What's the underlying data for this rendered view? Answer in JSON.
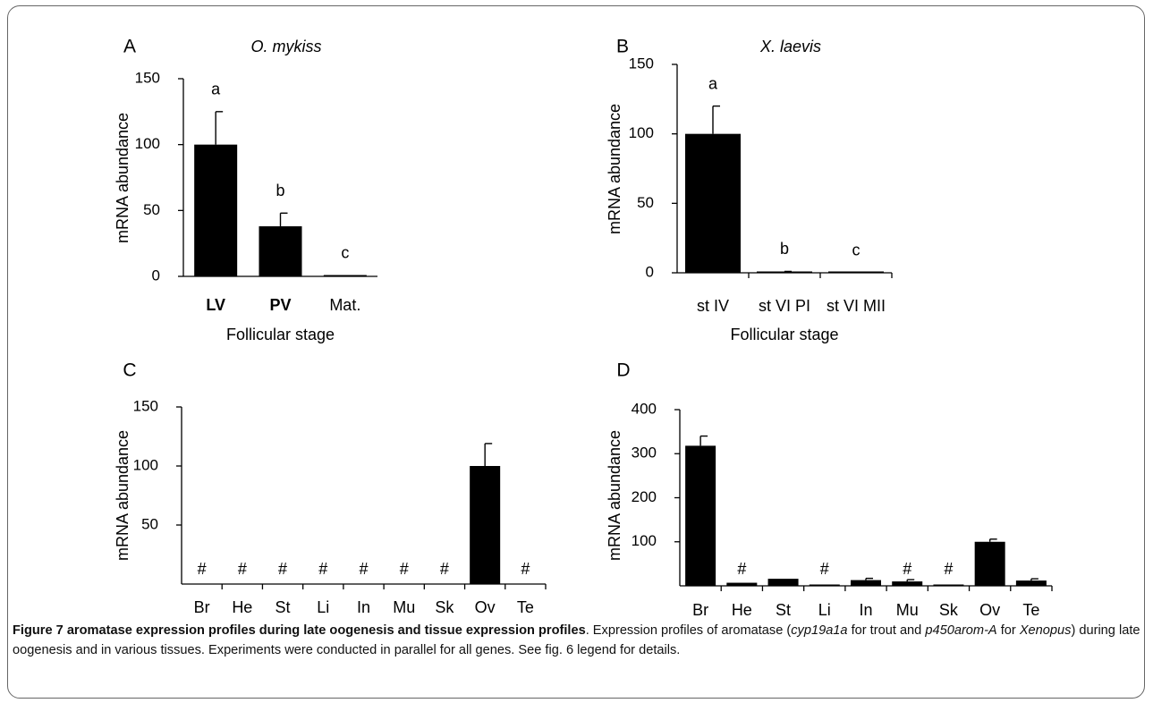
{
  "charts": [
    {
      "panel": "A",
      "title": "O. mykiss",
      "type": "bar",
      "ylabel": "mRNA abundance",
      "xlabel": "Follicular stage",
      "ylim": [
        0,
        150
      ],
      "yticks": [
        "0",
        "50",
        "100",
        "150"
      ],
      "categories": [
        "LV",
        "PV",
        "Mat."
      ],
      "bold_categories": [
        "LV",
        "PV"
      ],
      "values": [
        100,
        38,
        1
      ],
      "errors": [
        25,
        10,
        0
      ],
      "letters": [
        "a",
        "b",
        "c"
      ]
    },
    {
      "panel": "B",
      "title": "X. laevis",
      "type": "bar",
      "ylabel": "mRNA abundance",
      "xlabel": "Follicular stage",
      "ylim": [
        0,
        150
      ],
      "yticks": [
        "0",
        "50",
        "100",
        "150"
      ],
      "categories": [
        "st IV",
        "st VI PI",
        "st VI MII"
      ],
      "values": [
        100,
        0.5,
        0.2
      ],
      "errors": [
        20,
        0.5,
        0
      ],
      "letters": [
        "a",
        "b",
        "c"
      ]
    },
    {
      "panel": "C",
      "type": "bar",
      "ylabel": "mRNA abundance",
      "ylim": [
        0,
        150
      ],
      "yticks": [
        "50",
        "100",
        "150"
      ],
      "categories": [
        "Br",
        "He",
        "St",
        "Li",
        "In",
        "Mu",
        "Sk",
        "Ov",
        "Te"
      ],
      "values": [
        0,
        0,
        0,
        0,
        0,
        0,
        0,
        100,
        0
      ],
      "errors": [
        0,
        0,
        0,
        0,
        0,
        0,
        0,
        19,
        0
      ],
      "marks": [
        "#",
        "#",
        "#",
        "#",
        "#",
        "#",
        "#",
        "",
        "#"
      ]
    },
    {
      "panel": "D",
      "type": "bar",
      "ylabel": "mRNA abundance",
      "ylim": [
        0,
        400
      ],
      "yticks": [
        "100",
        "200",
        "300",
        "400"
      ],
      "categories": [
        "Br",
        "He",
        "St",
        "Li",
        "In",
        "Mu",
        "Sk",
        "Ov",
        "Te"
      ],
      "values": [
        318,
        7,
        16,
        1,
        13,
        10,
        1,
        100,
        12
      ],
      "errors": [
        22,
        0,
        0,
        0,
        4,
        4,
        0,
        6,
        4
      ],
      "marks": [
        "",
        "#",
        "",
        "#",
        "",
        "#",
        "#",
        "",
        ""
      ]
    }
  ],
  "caption": {
    "heading": "Figure 7 aromatase expression profiles during late oogenesis and tissue expression profiles",
    "text_1": ". Expression profiles of aromatase (",
    "gene_1": "cyp19a1a",
    "text_2": " for trout and ",
    "gene_2": "p450arom-A",
    "text_3": " for ",
    "species": "Xenopus",
    "text_4": ") during late oogenesis and in various tissues. Experiments were conducted in parallel for all genes. See fig. 6 legend for details."
  },
  "colors": {
    "bar": "#000000",
    "axis": "#000000",
    "frame": "#666666"
  }
}
